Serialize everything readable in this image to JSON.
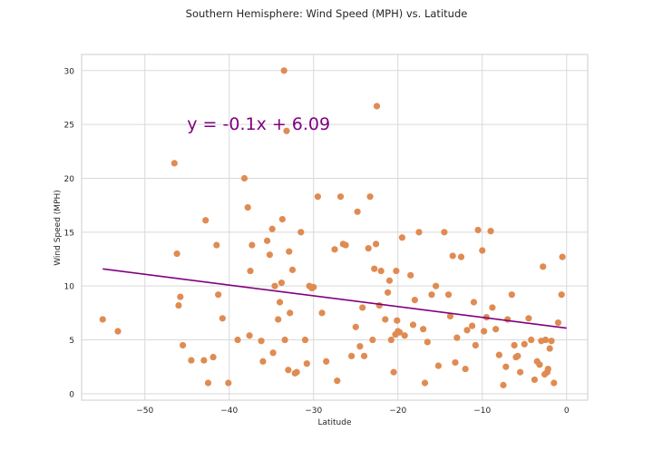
{
  "chart_data": {
    "type": "scatter",
    "title": "Southern Hemisphere: Wind Speed (MPH) vs. Latitude",
    "xlabel": "Latitude",
    "ylabel": "Wind Speed  (MPH)",
    "xlim": [
      -57.5,
      2.5
    ],
    "ylim": [
      -0.6,
      31.5
    ],
    "x_ticks": [
      -50,
      -40,
      -30,
      -20,
      -10,
      0
    ],
    "x_tick_labels": [
      "−50",
      "−40",
      "−30",
      "−20",
      "−10",
      "0"
    ],
    "y_ticks": [
      0,
      5,
      10,
      15,
      20,
      25,
      30
    ],
    "y_tick_labels": [
      "0",
      "5",
      "10",
      "15",
      "20",
      "25",
      "30"
    ],
    "grid": true,
    "legend": "none",
    "colors": {
      "points": "#e08b52",
      "regression": "#800080",
      "grid": "#d9d9d9",
      "axes": "#cccccc",
      "text": "#262626"
    },
    "regression": {
      "equation": "y = -0.1x + 6.09",
      "slope": -0.1,
      "intercept": 6.09,
      "x_range": [
        -55,
        0
      ],
      "label_at": [
        -45,
        25
      ]
    },
    "x": [
      -55.0,
      -53.2,
      -46.5,
      -46.2,
      -46.0,
      -45.8,
      -45.5,
      -43.0,
      -42.8,
      -42.5,
      -41.9,
      -41.5,
      -41.3,
      -40.8,
      -39.0,
      -38.2,
      -37.8,
      -37.5,
      -37.3,
      -35.5,
      -35.2,
      -34.9,
      -34.6,
      -34.2,
      -34.0,
      -33.8,
      -33.7,
      -33.5,
      -33.2,
      -32.9,
      -32.8,
      -32.5,
      -32.0,
      -31.5,
      -31.0,
      -30.8,
      -30.5,
      -30.0,
      -29.5,
      -29.0,
      -28.5,
      -27.5,
      -26.5,
      -26.2,
      -25.5,
      -25.0,
      -24.8,
      -24.5,
      -24.2,
      -23.5,
      -23.0,
      -22.8,
      -22.5,
      -22.0,
      -21.5,
      -21.0,
      -20.8,
      -20.5,
      -20.2,
      -19.5,
      -18.5,
      -18.0,
      -17.5,
      -17.0,
      -16.5,
      -16.0,
      -15.5,
      -14.5,
      -14.0,
      -13.5,
      -13.0,
      -12.5,
      -12.0,
      -11.0,
      -10.5,
      -10.0,
      -9.5,
      -9.0,
      -8.0,
      -7.5,
      -7.0,
      -6.5,
      -6.0,
      -5.5,
      -5.0,
      -4.5,
      -3.5,
      -3.0,
      -2.8,
      -2.5,
      -2.2,
      -2.0,
      -1.5,
      -1.0,
      -0.5,
      -34.8,
      -33.0,
      -32.2,
      -30.2,
      -27.2,
      -24.0,
      -22.2,
      -21.2,
      -20.0,
      -19.2,
      -18.2,
      -16.8,
      -15.2,
      -13.2,
      -11.8,
      -10.8,
      -9.8,
      -8.8,
      -7.2,
      -6.2,
      -4.2,
      -3.2,
      -2.6,
      -1.8,
      -0.6,
      -20.3,
      -20.1,
      -23.3,
      -26.8,
      -44.5,
      -36.0,
      -37.6,
      -22.6,
      -19.8,
      -13.8,
      -11.2,
      -8.4,
      -5.8,
      -3.8,
      -2.3,
      -33.4,
      -36.2,
      -40.1
    ],
    "y": [
      6.9,
      5.8,
      21.4,
      13.0,
      8.2,
      9.0,
      4.5,
      3.1,
      16.1,
      1.0,
      3.4,
      13.8,
      9.2,
      7.0,
      5.0,
      20.0,
      17.3,
      11.4,
      13.8,
      14.2,
      12.9,
      15.3,
      10.0,
      6.9,
      8.5,
      10.3,
      16.2,
      30.0,
      24.4,
      13.2,
      7.5,
      11.5,
      2.0,
      15.0,
      5.0,
      2.8,
      10.0,
      9.9,
      18.3,
      7.5,
      3.0,
      13.4,
      13.9,
      13.8,
      3.5,
      6.2,
      16.9,
      4.4,
      8.0,
      13.5,
      5.0,
      11.6,
      26.7,
      11.4,
      6.9,
      10.5,
      5.0,
      2.0,
      11.4,
      14.5,
      11.0,
      8.7,
      15.0,
      6.0,
      4.8,
      9.2,
      10.0,
      15.0,
      9.2,
      12.8,
      5.2,
      12.7,
      2.3,
      8.5,
      15.2,
      13.3,
      7.1,
      15.1,
      3.6,
      0.8,
      6.9,
      9.2,
      3.4,
      2.0,
      4.6,
      7.0,
      3.0,
      4.9,
      11.8,
      5.0,
      2.3,
      4.2,
      1.0,
      6.6,
      12.7,
      3.8,
      2.2,
      1.9,
      9.8,
      1.2,
      3.5,
      8.2,
      9.4,
      5.8,
      5.4,
      6.4,
      1.0,
      2.6,
      2.9,
      5.9,
      4.5,
      5.8,
      8.0,
      2.5,
      4.5,
      5.0,
      2.7,
      1.8,
      4.9,
      9.2,
      5.5,
      6.8,
      18.3,
      18.3,
      3.1,
      3.0,
      5.4,
      13.9,
      5.7,
      7.2,
      6.3,
      6.0,
      3.5,
      1.3,
      2.0,
      5.0,
      4.9,
      1.0
    ]
  }
}
